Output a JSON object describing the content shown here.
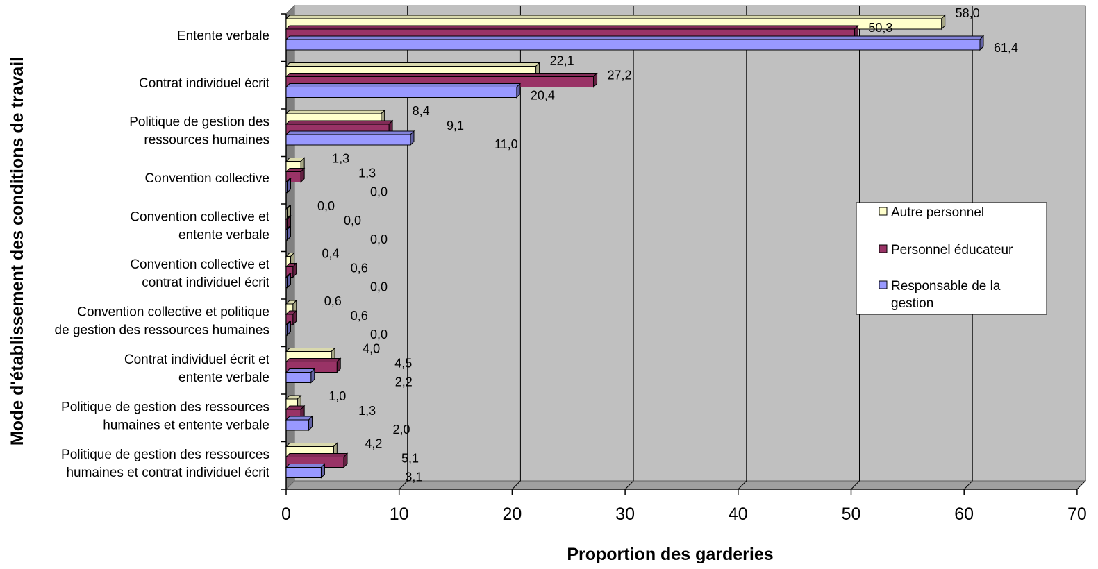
{
  "chart_data": {
    "type": "bar",
    "orientation": "horizontal",
    "categories": [
      [
        "Entente verbale"
      ],
      [
        "Contrat individuel écrit"
      ],
      [
        "Politique de gestion des",
        "ressources humaines"
      ],
      [
        "Convention collective"
      ],
      [
        "Convention collective et",
        "entente verbale"
      ],
      [
        "Convention collective et",
        "contrat individuel écrit"
      ],
      [
        "Convention collective et politique",
        "de gestion des ressources humaines"
      ],
      [
        "Contrat individuel écrit et",
        "entente verbale"
      ],
      [
        "Politique de gestion des ressources",
        "humaines et entente verbale"
      ],
      [
        "Politique de gestion des ressources",
        "humaines et contrat individuel écrit"
      ]
    ],
    "series": [
      {
        "name": "Autre personnel",
        "color": "#FFFFCC",
        "values": [
          58.0,
          22.1,
          8.4,
          1.3,
          0.0,
          0.4,
          0.6,
          4.0,
          1.0,
          4.2
        ],
        "labels": [
          "58,0",
          "22,1",
          "8,4",
          "1,3",
          "0,0",
          "0,4",
          "0,6",
          "4,0",
          "1,0",
          "4,2"
        ]
      },
      {
        "name": "Personnel éducateur",
        "color": "#993366",
        "values": [
          50.3,
          27.2,
          9.1,
          1.3,
          0.0,
          0.6,
          0.6,
          4.5,
          1.3,
          5.1
        ],
        "labels": [
          "50,3",
          "27,2",
          "9,1",
          "1,3",
          "0,0",
          "0,6",
          "0,6",
          "4,5",
          "1,3",
          "5,1"
        ]
      },
      {
        "name": "Responsable de la gestion",
        "color": "#9999FF",
        "legend_lines": [
          "Responsable de la",
          "gestion"
        ],
        "values": [
          61.4,
          20.4,
          11.0,
          0.0,
          0.0,
          0.0,
          0.0,
          2.2,
          2.0,
          3.1
        ],
        "labels": [
          "61,4",
          "20,4",
          "11,0",
          "0,0",
          "0,0",
          "0,0",
          "0,0",
          "2,2",
          "2,0",
          "3,1"
        ]
      }
    ],
    "xlabel": "Proportion des garderies",
    "ylabel": "Mode d'établissement des conditions de travail",
    "xlim": [
      0,
      70
    ],
    "xticks": [
      "0",
      "10",
      "20",
      "30",
      "40",
      "50",
      "60",
      "70"
    ],
    "grid": true,
    "plot_background": "#C0C0C0",
    "legend_position": "right"
  }
}
